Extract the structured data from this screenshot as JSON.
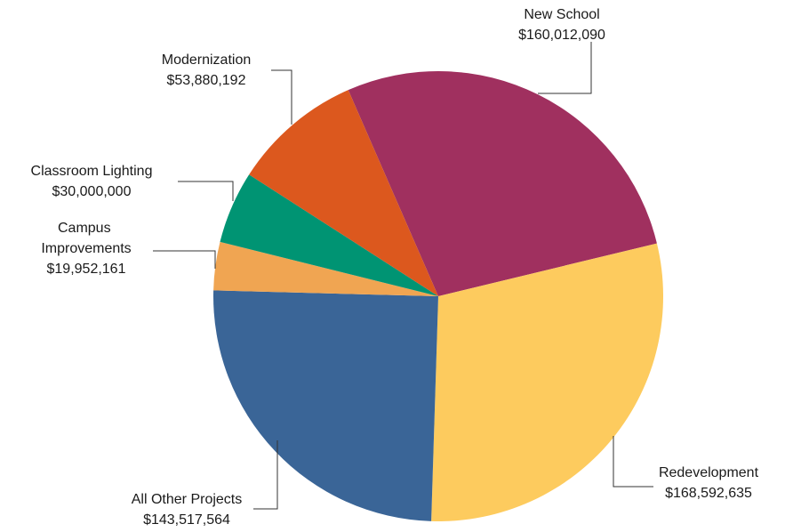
{
  "chart_data": {
    "type": "pie",
    "categories": [
      "New School",
      "Redevelopment",
      "All Other Projects",
      "Campus Improvements",
      "Classroom Lighting",
      "Modernization"
    ],
    "values": [
      160012090,
      168592635,
      143517564,
      19952161,
      30000000,
      53880192
    ],
    "value_labels": [
      "$160,012,090",
      "$168,592,635",
      "$143,517,564",
      "$19,952,161",
      "$30,000,000",
      "$53,880,192"
    ],
    "colors": [
      "#a0305f",
      "#fdcb5e",
      "#3a6597",
      "#f0a552",
      "#009473",
      "#dc581e"
    ]
  }
}
